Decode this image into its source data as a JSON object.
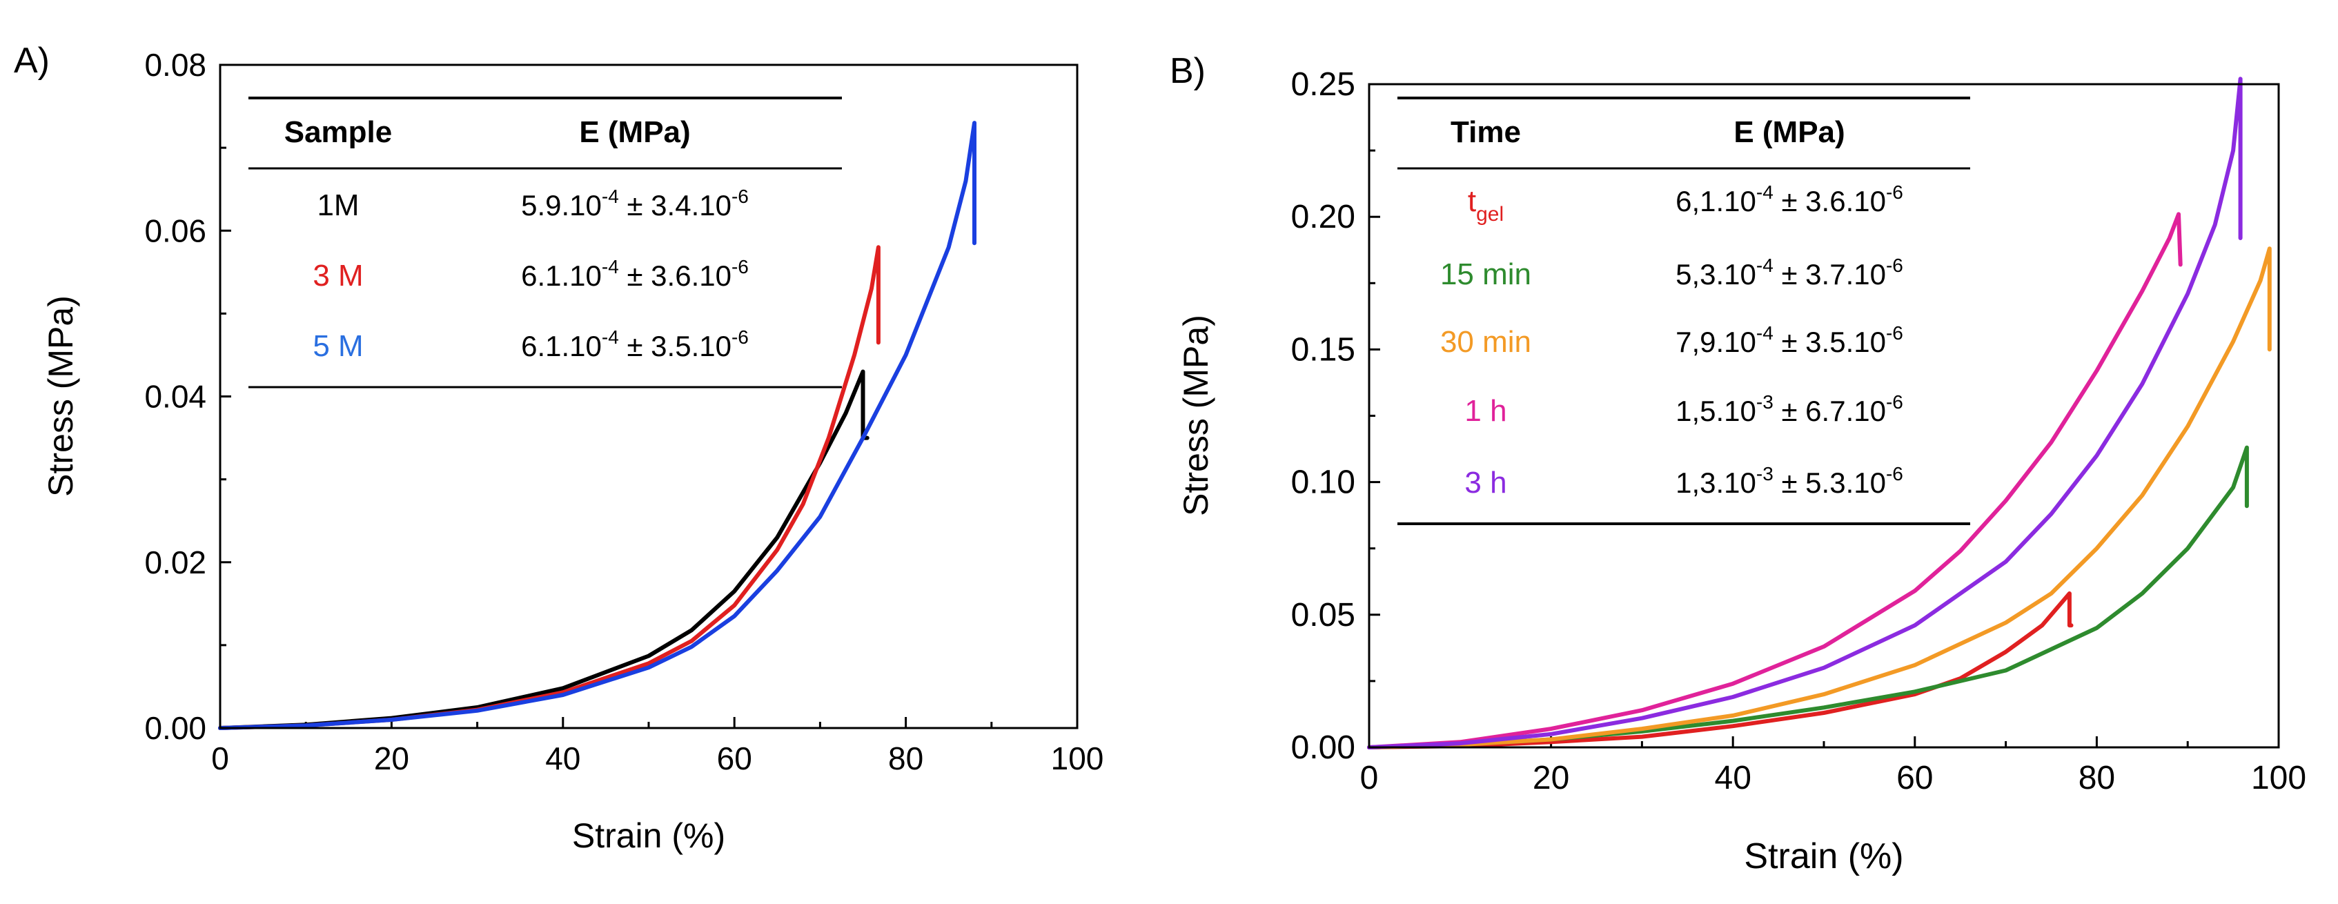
{
  "chart_data": [
    {
      "type": "line",
      "panel_label": "A)",
      "xlabel": "Strain (%)",
      "ylabel": "Stress (MPa)",
      "xlim": [
        0,
        100
      ],
      "ylim": [
        0,
        0.08
      ],
      "xticks": [
        0,
        20,
        40,
        60,
        80,
        100
      ],
      "xtick_labels": [
        "0",
        "20",
        "40",
        "60",
        "80",
        "100"
      ],
      "yticks": [
        0,
        0.02,
        0.04,
        0.06,
        0.08
      ],
      "ytick_labels": [
        "0.00",
        "0.02",
        "0.04",
        "0.06",
        "0.08"
      ],
      "series": [
        {
          "name": "1M",
          "color": "#000000",
          "x": [
            0,
            10,
            20,
            30,
            40,
            50,
            55,
            60,
            65,
            70,
            73,
            75,
            75,
            75.5
          ],
          "y": [
            0,
            0.0004,
            0.0012,
            0.0025,
            0.0048,
            0.0087,
            0.0118,
            0.0165,
            0.023,
            0.032,
            0.038,
            0.043,
            0.035,
            0.035
          ]
        },
        {
          "name": "3 M",
          "color": "#e02020",
          "x": [
            0,
            10,
            20,
            30,
            40,
            50,
            55,
            60,
            65,
            68,
            71,
            74,
            76,
            76.8,
            76.8
          ],
          "y": [
            0,
            0.0003,
            0.001,
            0.0022,
            0.0043,
            0.0078,
            0.0105,
            0.0148,
            0.0215,
            0.027,
            0.035,
            0.045,
            0.053,
            0.058,
            0.0465
          ]
        },
        {
          "name": "5 M",
          "color": "#1a3fe0",
          "x": [
            0,
            10,
            20,
            30,
            40,
            50,
            55,
            60,
            65,
            70,
            75,
            80,
            85,
            87,
            88,
            88
          ],
          "y": [
            0,
            0.0003,
            0.001,
            0.0021,
            0.004,
            0.0073,
            0.0098,
            0.0135,
            0.019,
            0.0255,
            0.035,
            0.045,
            0.058,
            0.066,
            0.073,
            0.0585
          ]
        }
      ],
      "table": {
        "headers": [
          "Sample",
          "E (MPa)"
        ],
        "rows": [
          {
            "sample": "1M",
            "e_mantissa": "5.9.10",
            "e_exp": "-4",
            "e_pm": " ± 3.4.10",
            "e_exp2": "-6",
            "color": "#000000"
          },
          {
            "sample": "3 M",
            "e_mantissa": "6.1.10",
            "e_exp": "-4",
            "e_pm": " ± 3.6.10",
            "e_exp2": "-6",
            "color": "#e02020"
          },
          {
            "sample": "5 M",
            "e_mantissa": "6.1.10",
            "e_exp": "-4",
            "e_pm": " ± 3.5.10",
            "e_exp2": "-6",
            "color": "#2a6fe0"
          }
        ]
      }
    },
    {
      "type": "line",
      "panel_label": "B)",
      "xlabel": "Strain (%)",
      "ylabel": "Stress (MPa)",
      "xlim": [
        0,
        100
      ],
      "ylim": [
        0,
        0.25
      ],
      "xticks": [
        0,
        20,
        40,
        60,
        80,
        100
      ],
      "xtick_labels": [
        "0",
        "20",
        "40",
        "60",
        "80",
        "100"
      ],
      "yticks": [
        0,
        0.05,
        0.1,
        0.15,
        0.2,
        0.25
      ],
      "ytick_labels": [
        "0.00",
        "0.05",
        "0.10",
        "0.15",
        "0.20",
        "0.25"
      ],
      "series": [
        {
          "name": "t_gel",
          "color": "#e02020",
          "x": [
            0,
            10,
            20,
            30,
            40,
            50,
            60,
            65,
            70,
            74,
            77,
            77,
            77.2
          ],
          "y": [
            0,
            0.0005,
            0.002,
            0.004,
            0.008,
            0.013,
            0.02,
            0.026,
            0.036,
            0.046,
            0.058,
            0.046,
            0.046
          ]
        },
        {
          "name": "15 min",
          "color": "#2e8b2e",
          "x": [
            0,
            10,
            20,
            30,
            40,
            50,
            60,
            70,
            80,
            85,
            90,
            95,
            96.5,
            96.5
          ],
          "y": [
            0,
            0.001,
            0.003,
            0.006,
            0.01,
            0.015,
            0.021,
            0.029,
            0.045,
            0.058,
            0.075,
            0.098,
            0.113,
            0.091
          ]
        },
        {
          "name": "30 min",
          "color": "#f39a25",
          "x": [
            0,
            10,
            20,
            30,
            40,
            50,
            60,
            70,
            75,
            80,
            85,
            90,
            95,
            98,
            99,
            99
          ],
          "y": [
            0,
            0.001,
            0.003,
            0.007,
            0.012,
            0.02,
            0.031,
            0.047,
            0.058,
            0.075,
            0.095,
            0.121,
            0.153,
            0.176,
            0.188,
            0.15
          ]
        },
        {
          "name": "1 h",
          "color": "#e0229a",
          "x": [
            0,
            10,
            20,
            30,
            40,
            50,
            60,
            65,
            70,
            75,
            80,
            85,
            88,
            89,
            89.2
          ],
          "y": [
            0,
            0.002,
            0.007,
            0.014,
            0.024,
            0.038,
            0.059,
            0.074,
            0.093,
            0.115,
            0.142,
            0.172,
            0.192,
            0.201,
            0.182
          ]
        },
        {
          "name": "3 h",
          "color": "#8b2be0",
          "x": [
            0,
            10,
            20,
            30,
            40,
            50,
            60,
            70,
            75,
            80,
            85,
            90,
            93,
            95,
            95.8,
            95.8
          ],
          "y": [
            0,
            0.0015,
            0.005,
            0.011,
            0.019,
            0.03,
            0.046,
            0.07,
            0.088,
            0.11,
            0.137,
            0.171,
            0.197,
            0.225,
            0.252,
            0.192
          ]
        }
      ],
      "table": {
        "headers": [
          "Time",
          "E (MPa)"
        ],
        "rows": [
          {
            "sample": "t",
            "sample_sub": "gel",
            "e_mantissa": "6,1.10",
            "e_exp": "-4",
            "e_pm": " ± 3.6.10",
            "e_exp2": "-6",
            "color": "#e02020"
          },
          {
            "sample": "15 min",
            "e_mantissa": "5,3.10",
            "e_exp": "-4",
            "e_pm": " ± 3.7.10",
            "e_exp2": "-6",
            "color": "#2e8b2e"
          },
          {
            "sample": "30 min",
            "e_mantissa": "7,9.10",
            "e_exp": "-4",
            "e_pm": " ± 3.5.10",
            "e_exp2": "-6",
            "color": "#f39a25"
          },
          {
            "sample": "1 h",
            "e_mantissa": "1,5.10",
            "e_exp": "-3",
            "e_pm": " ± 6.7.10",
            "e_exp2": "-6",
            "color": "#e0229a"
          },
          {
            "sample": "3 h",
            "e_mantissa": "1,3.10",
            "e_exp": "-3",
            "e_pm": " ± 5.3.10",
            "e_exp2": "-6",
            "color": "#8b2be0"
          }
        ]
      }
    }
  ]
}
